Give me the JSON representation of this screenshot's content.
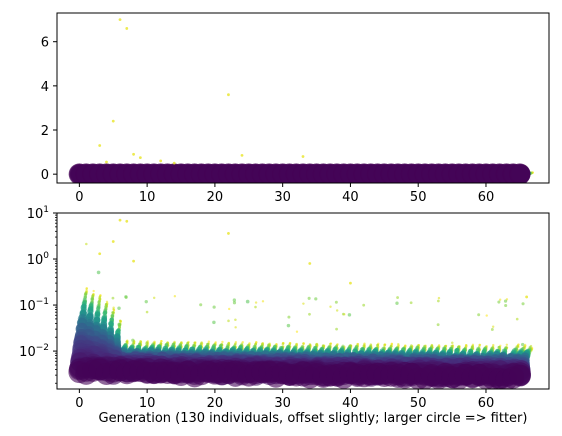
{
  "chart_data": [
    {
      "type": "scatter",
      "title": "",
      "xlabel": "",
      "ylabel": "",
      "yscale": "linear",
      "xlim": [
        -3.3,
        69.3
      ],
      "ylim": [
        -0.4,
        7.3
      ],
      "xticks": [
        0,
        10,
        20,
        30,
        40,
        50,
        60
      ],
      "xtick_labels": [
        "0",
        "10",
        "20",
        "30",
        "40",
        "50",
        "60"
      ],
      "yticks": [
        0,
        2,
        4,
        6
      ],
      "ytick_labels": [
        "0",
        "2",
        "4",
        "6"
      ],
      "generations": 66,
      "individuals_per_generation": 130,
      "colormap": "viridis (purple = fitter/larger circle, yellow = less fit/smaller circle)",
      "grid": false,
      "legend": "none",
      "outlier_points": [
        {
          "x": 6,
          "y": 7.0
        },
        {
          "x": 7,
          "y": 6.6
        },
        {
          "x": 22,
          "y": 3.6
        },
        {
          "x": 5,
          "y": 2.4
        },
        {
          "x": 3,
          "y": 1.3
        },
        {
          "x": 8,
          "y": 0.9
        },
        {
          "x": 9,
          "y": 0.75
        },
        {
          "x": 24,
          "y": 0.85
        },
        {
          "x": 33,
          "y": 0.8
        },
        {
          "x": 12,
          "y": 0.6
        },
        {
          "x": 4,
          "y": 0.55
        },
        {
          "x": 14,
          "y": 0.5
        }
      ]
    },
    {
      "type": "scatter",
      "title": "",
      "xlabel": "Generation (130 individuals, offset slightly; larger circle => fitter)",
      "ylabel": "",
      "yscale": "log",
      "xlim": [
        -3.3,
        69.3
      ],
      "ylim": [
        0.0015,
        10
      ],
      "xticks": [
        0,
        10,
        20,
        30,
        40,
        50,
        60
      ],
      "xtick_labels": [
        "0",
        "10",
        "20",
        "30",
        "40",
        "50",
        "60"
      ],
      "yticks": [
        0.01,
        0.1,
        1,
        10
      ],
      "ytick_labels": [
        "10^-2",
        "10^-1",
        "10^0",
        "10^1"
      ],
      "generations": 66,
      "individuals_per_generation": 130,
      "colormap": "viridis (purple = fitter/larger circle, yellow = less fit/smaller circle)",
      "grid": false,
      "legend": "none",
      "best_fitness_trend": [
        {
          "x": 0,
          "y": 0.0035
        },
        {
          "x": 10,
          "y": 0.0033
        },
        {
          "x": 20,
          "y": 0.0031
        },
        {
          "x": 30,
          "y": 0.003
        },
        {
          "x": 40,
          "y": 0.0029
        },
        {
          "x": 50,
          "y": 0.0028
        },
        {
          "x": 65,
          "y": 0.0027
        }
      ],
      "outlier_points": [
        {
          "x": 6,
          "y": 7.0
        },
        {
          "x": 7,
          "y": 6.6
        },
        {
          "x": 22,
          "y": 3.6
        },
        {
          "x": 5,
          "y": 2.4
        },
        {
          "x": 3,
          "y": 1.3
        },
        {
          "x": 8,
          "y": 0.9
        },
        {
          "x": 34,
          "y": 0.8
        },
        {
          "x": 66,
          "y": 0.15
        },
        {
          "x": 40,
          "y": 0.3
        }
      ]
    }
  ],
  "colors": {
    "viridis_0": "#440154",
    "viridis_25": "#3b528b",
    "viridis_50": "#21918c",
    "viridis_75": "#5ec962",
    "viridis_100": "#fde725"
  }
}
